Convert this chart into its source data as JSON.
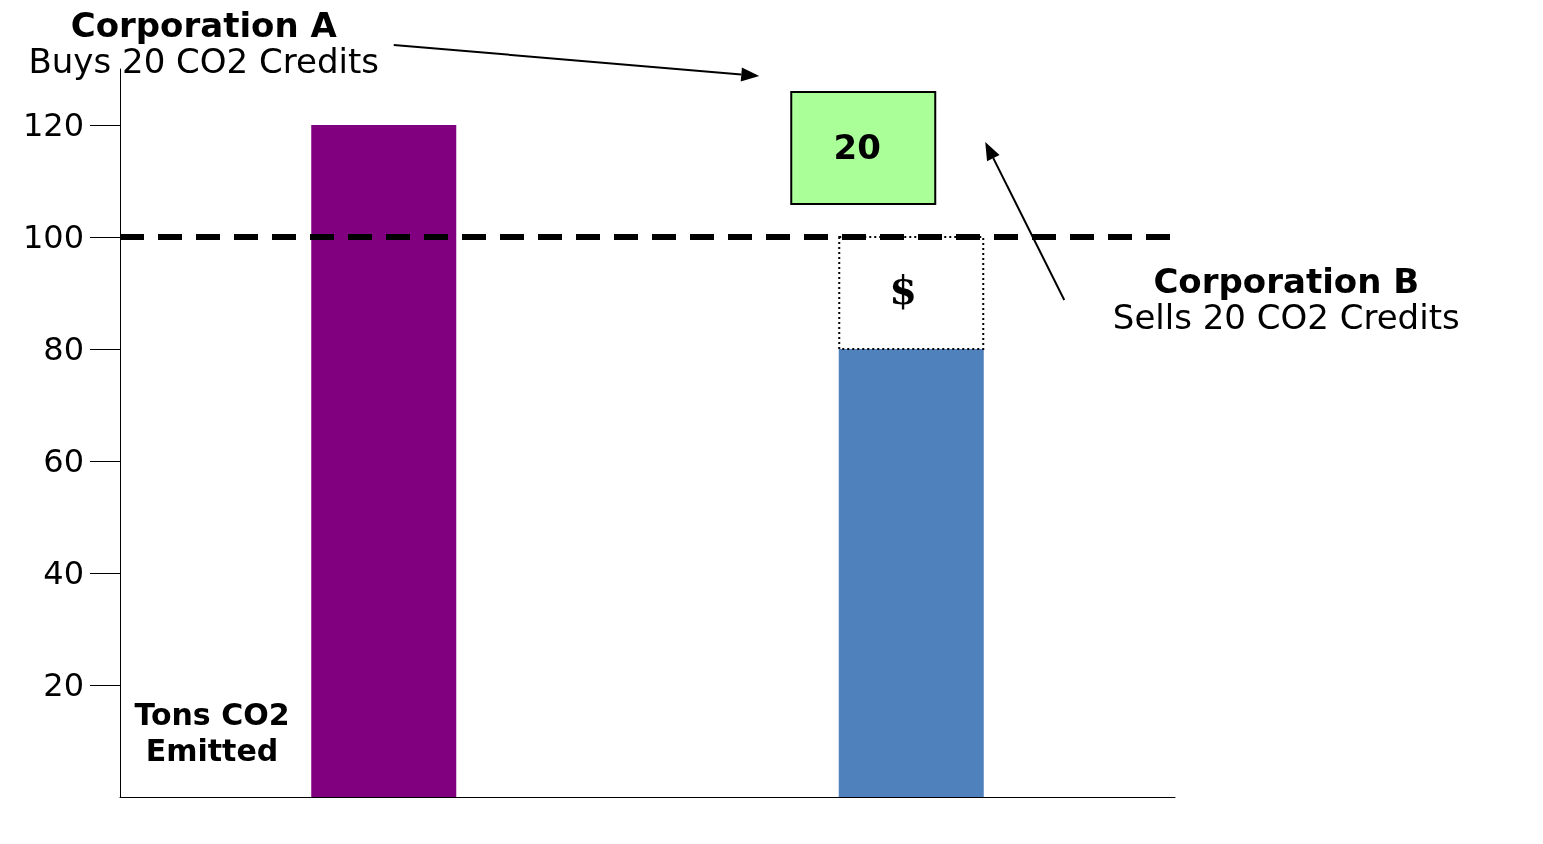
{
  "chart_data": {
    "type": "bar",
    "categories": [
      null,
      null
    ],
    "series": [
      {
        "values": [
          120,
          80
        ],
        "colors": [
          "#800080",
          "#4f81bd"
        ]
      }
    ],
    "ylabel": "Tons CO2 Emitted",
    "ylim": [
      0,
      130
    ],
    "yticks": [
      20,
      40,
      60,
      80,
      100,
      120
    ],
    "grid": false,
    "ref_lines": [
      {
        "axis": "y",
        "value": 100,
        "color": "#000000",
        "line_style": "dashed"
      }
    ],
    "annotations": [
      "Corporation A",
      "Buys 20 CO2 Credits",
      "Corporation B",
      "Sells 20 CO2 Credits",
      "20",
      "$"
    ]
  }
}
